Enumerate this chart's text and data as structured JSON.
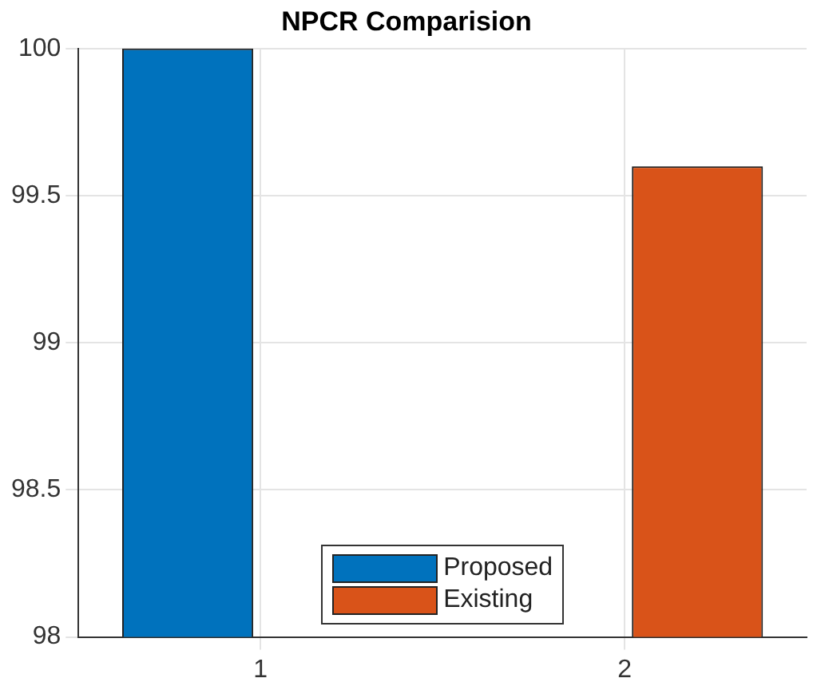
{
  "chart_data": {
    "type": "bar",
    "title": "NPCR Comparision",
    "categories": [
      "1",
      "2"
    ],
    "series": [
      {
        "name": "Proposed",
        "color": "#0072bd",
        "values": [
          100,
          null
        ]
      },
      {
        "name": "Existing",
        "color": "#d95319",
        "values": [
          null,
          99.6
        ]
      }
    ],
    "ylim": [
      98,
      100
    ],
    "yticks": [
      98,
      98.5,
      99,
      99.5,
      100
    ],
    "grid": true,
    "legend": "bottom"
  }
}
